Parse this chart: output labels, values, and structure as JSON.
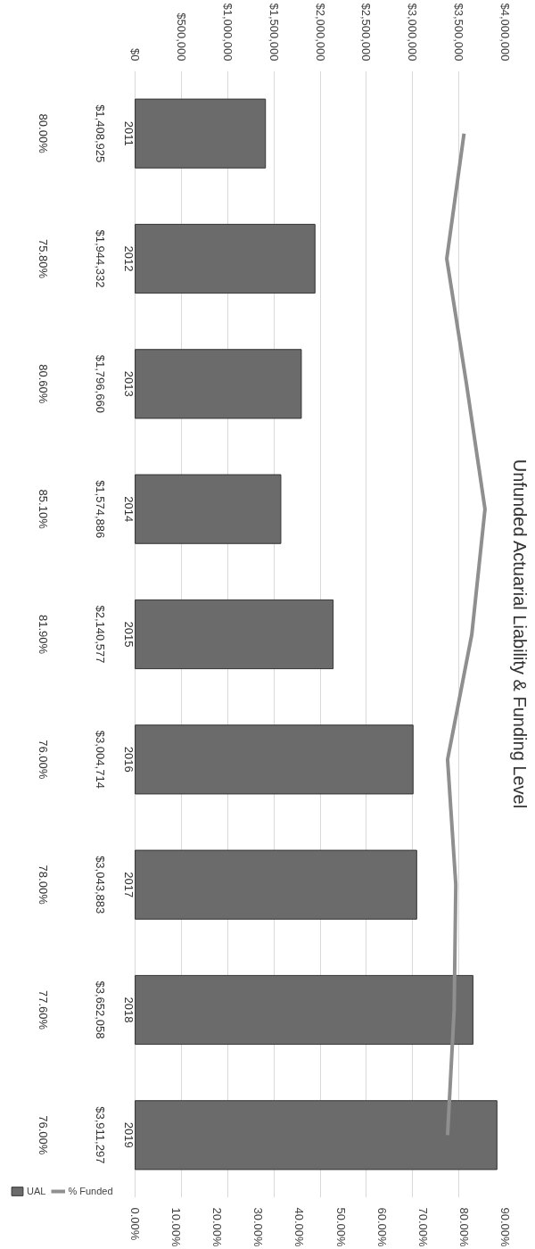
{
  "chart_data": {
    "type": "bar",
    "orientation": "horizontal",
    "title": "Unfunded Actuarial Liability & Funding Level",
    "categories": [
      "2011",
      "2012",
      "2013",
      "2014",
      "2015",
      "2016",
      "2017",
      "2018",
      "2019"
    ],
    "xlim": [
      0,
      4000000
    ],
    "xticks": [
      {
        "value": 0,
        "label": "$0"
      },
      {
        "value": 500000,
        "label": "$500,000"
      },
      {
        "value": 1000000,
        "label": "$1,000,000"
      },
      {
        "value": 1500000,
        "label": "$1,500,000"
      },
      {
        "value": 2000000,
        "label": "$2,000,000"
      },
      {
        "value": 2500000,
        "label": "$2,500,000"
      },
      {
        "value": 3000000,
        "label": "$3,000,000"
      },
      {
        "value": 3500000,
        "label": "$3,500,000"
      },
      {
        "value": 4000000,
        "label": "$4,000,000"
      }
    ],
    "x2lim": [
      0,
      90
    ],
    "x2ticks": [
      {
        "value": 0,
        "label": "0.00%"
      },
      {
        "value": 10,
        "label": "10.00%"
      },
      {
        "value": 20,
        "label": "20.00%"
      },
      {
        "value": 30,
        "label": "30.00%"
      },
      {
        "value": 40,
        "label": "40.00%"
      },
      {
        "value": 50,
        "label": "50.00%"
      },
      {
        "value": 60,
        "label": "60.00%"
      },
      {
        "value": 70,
        "label": "70.00%"
      },
      {
        "value": 80,
        "label": "80.00%"
      },
      {
        "value": 90,
        "label": "90.00%"
      }
    ],
    "grid": "x",
    "legend": "bottom left",
    "series": [
      {
        "name": "UAL",
        "color": "#6b6b6b",
        "values": [
          1408925,
          1944332,
          1796660,
          1574886,
          2140577,
          3004714,
          3043883,
          3652058,
          3911297
        ],
        "value_labels": [
          "$1,408,925",
          "$1,944,332",
          "$1,796,660",
          "$1,574,886",
          "$2,140,577",
          "$3,004,714",
          "$3,043,883",
          "$3,652,058",
          "$3,911,297"
        ]
      },
      {
        "name": "% Funded",
        "type": "line",
        "axis": "x2",
        "color": "#8f8f8f",
        "values": [
          80,
          75.8,
          80.6,
          85.1,
          81.9,
          76,
          78,
          77.6,
          76
        ],
        "value_labels": [
          "80.00%",
          "75.80%",
          "80.60%",
          "85.10%",
          "81.90%",
          "76.00%",
          "78.00%",
          "77.60%",
          "76.00%"
        ]
      }
    ]
  }
}
